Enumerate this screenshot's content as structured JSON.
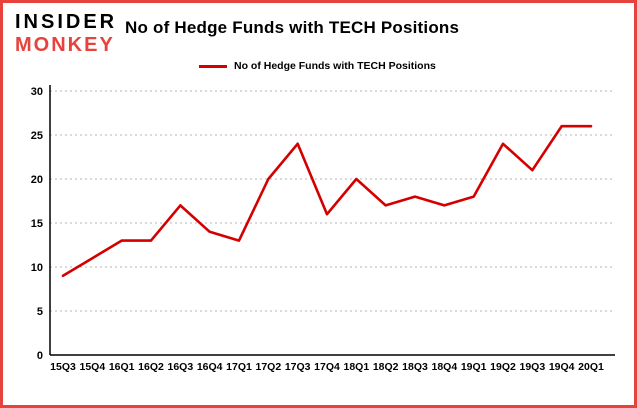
{
  "brand": {
    "line1": "INSIDER",
    "line2": "MONKEY"
  },
  "title": "No of Hedge Funds with TECH Positions",
  "legend": {
    "label": "No of Hedge Funds with TECH Positions"
  },
  "colors": {
    "line": "#d40000",
    "border": "#e8423c",
    "grid": "#b5b5b5",
    "axis": "#000000",
    "brand_red": "#e8423c",
    "text": "#000000",
    "background": "#ffffff"
  },
  "chart_data": {
    "type": "line",
    "categories": [
      "15Q3",
      "15Q4",
      "16Q1",
      "16Q2",
      "16Q3",
      "16Q4",
      "17Q1",
      "17Q2",
      "17Q3",
      "17Q4",
      "18Q1",
      "18Q2",
      "18Q3",
      "18Q4",
      "19Q1",
      "19Q2",
      "19Q3",
      "19Q4",
      "20Q1"
    ],
    "series": [
      {
        "name": "No of Hedge Funds with TECH Positions",
        "values": [
          9,
          11,
          13,
          13,
          17,
          14,
          13,
          20,
          24,
          16,
          20,
          17,
          18,
          17,
          18,
          24,
          21,
          26,
          26
        ]
      }
    ],
    "title": "No of Hedge Funds with TECH Positions",
    "xlabel": "",
    "ylabel": "",
    "ylim": [
      0,
      30
    ],
    "yticks": [
      0,
      5,
      10,
      15,
      20,
      25,
      30
    ],
    "grid": true,
    "legend_position": "top-left"
  }
}
